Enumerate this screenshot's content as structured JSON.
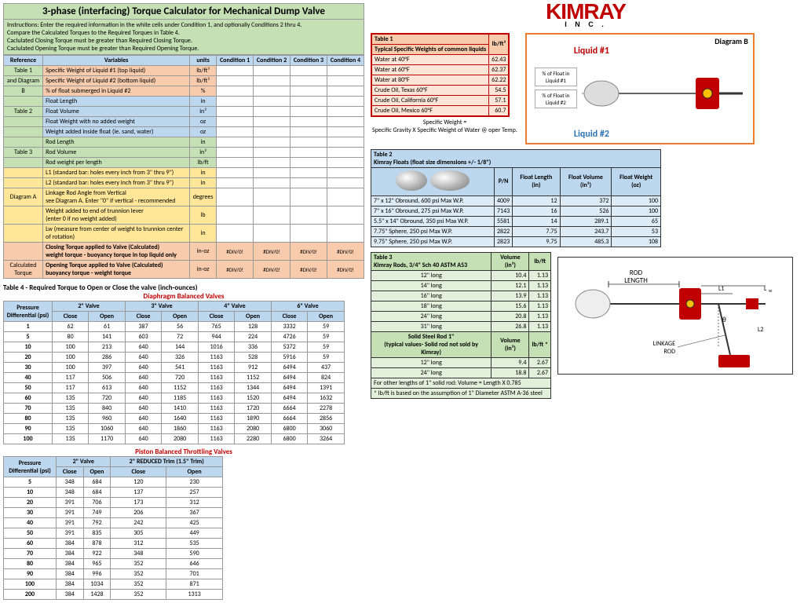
{
  "title": "3-phase (interfacing) Torque Calculator for Mechanical Dump Valve",
  "instructions": [
    "Instructions: Enter the required information in the white cells under Condition 1, and optionally Conditions 2 thru 4.",
    "Compare the Calculated Torques to the Required Torques in Table 4.",
    "Caclulated Closing Torque must be greater than Required Closing Torque.",
    "Caclulated Opening Torque must be greater than Required Opening Torque."
  ],
  "main_table": {
    "headers": [
      "Reference",
      "Variables",
      "units",
      "Condition 1",
      "Condition 2",
      "Condition 3",
      "Condition 4"
    ],
    "rows": [
      {
        "ref": "Table 1",
        "refclass": "ref-green",
        "var": "Specific Weight of Liquid #1 (top liquid)",
        "varclass": "ref-orange",
        "unit": "lb/ft³",
        "unitclass": "ref-orange"
      },
      {
        "ref": "and Diagram",
        "refclass": "ref-green",
        "var": "Specific Weight of Liquid #2 (bottom liquid)",
        "varclass": "ref-orange",
        "unit": "lb/ft³",
        "unitclass": "ref-orange"
      },
      {
        "ref": "B",
        "refclass": "ref-green",
        "var": "% of float submerged in Liquid #2",
        "varclass": "ref-orange",
        "unit": "%",
        "unitclass": "ref-orange"
      },
      {
        "ref": "",
        "refclass": "ref-green",
        "var": "Float Length",
        "varclass": "ref-blue",
        "unit": "in",
        "unitclass": "ref-blue"
      },
      {
        "ref": "Table 2",
        "refclass": "ref-green",
        "var": "Float Volume",
        "varclass": "ref-blue",
        "unit": "in³",
        "unitclass": "ref-blue"
      },
      {
        "ref": "",
        "refclass": "ref-green",
        "var": "Float Weight with no added weight",
        "varclass": "ref-blue",
        "unit": "oz",
        "unitclass": "ref-blue"
      },
      {
        "ref": "",
        "refclass": "ref-green",
        "var": "Weight added inside float (ie. sand, water)",
        "varclass": "ref-blue",
        "unit": "oz",
        "unitclass": "ref-blue"
      },
      {
        "ref": "",
        "refclass": "ref-green",
        "var": "Rod Length",
        "varclass": "ref-green",
        "unit": "in",
        "unitclass": "ref-green"
      },
      {
        "ref": "Table 3",
        "refclass": "ref-green",
        "var": "Rod Volume",
        "varclass": "ref-green",
        "unit": "in³",
        "unitclass": "ref-green"
      },
      {
        "ref": "",
        "refclass": "ref-green",
        "var": "Rod weight per length",
        "varclass": "ref-green",
        "unit": "lb/ft",
        "unitclass": "ref-green"
      },
      {
        "ref": "",
        "refclass": "ref-yellow",
        "var": "L1  (standard bar: holes every inch from 3\" thru 9\")",
        "varclass": "ref-yellow",
        "unit": "in",
        "unitclass": "ref-yellow"
      },
      {
        "ref": "",
        "refclass": "ref-yellow",
        "var": "L2  (standard bar: holes every inch from 3\" thru 9\")",
        "varclass": "ref-yellow",
        "unit": "in",
        "unitclass": "ref-yellow"
      },
      {
        "ref": "Diagram A",
        "refclass": "ref-yellow",
        "var": "Linkage Rod Angle from Vertical\nsee Diagram A.  Enter \"0\" if vertical - recommended",
        "varclass": "ref-yellow",
        "unit": "degrees",
        "unitclass": "ref-yellow"
      },
      {
        "ref": "",
        "refclass": "ref-yellow",
        "var": "Weight added to end of trunnion lever\n(enter 0 if no weight added)",
        "varclass": "ref-yellow",
        "unit": "lb",
        "unitclass": "ref-yellow"
      },
      {
        "ref": "",
        "refclass": "ref-yellow",
        "var": "Lw  (measure from center of weight to trunnion center of rotation)",
        "varclass": "ref-yellow",
        "unit": "in",
        "unitclass": "ref-yellow"
      }
    ],
    "calc_rows": [
      {
        "ref": "",
        "var": "Closing Torque applied to Valve (Calculated)\nweight torque - buoyancy torque in top liquid only",
        "unit": "in-oz"
      },
      {
        "ref": "Calculated\nTorque",
        "var": "Opening Torque applied to Valve (Calculated)\nbuoyancy torque - weight torque",
        "unit": "in-oz"
      }
    ],
    "div0": "#DIV/0!"
  },
  "table4_title": "Table 4  -  Required Torque to Open or Close the valve (inch-ounces)",
  "diaphragm_title": "Diaphragm Balanced Valves",
  "piston_title": "Piston Balanced Throttling Valves",
  "table4": {
    "header1": [
      "Pressure Differential (psi)",
      "2\" Valve",
      "3\" Valve",
      "4\" Valve",
      "6\" Valve"
    ],
    "header2": [
      "Close",
      "Open",
      "Close",
      "Open",
      "Close",
      "Open",
      "Close",
      "Open"
    ],
    "rows": [
      [
        "1",
        "62",
        "61",
        "387",
        "56",
        "765",
        "128",
        "3332",
        "59"
      ],
      [
        "5",
        "80",
        "141",
        "603",
        "72",
        "944",
        "224",
        "4726",
        "59"
      ],
      [
        "10",
        "100",
        "213",
        "640",
        "144",
        "1016",
        "336",
        "5372",
        "59"
      ],
      [
        "20",
        "100",
        "286",
        "640",
        "326",
        "1163",
        "528",
        "5916",
        "59"
      ],
      [
        "30",
        "100",
        "397",
        "640",
        "541",
        "1163",
        "912",
        "6494",
        "437"
      ],
      [
        "40",
        "117",
        "506",
        "640",
        "720",
        "1163",
        "1152",
        "6494",
        "824"
      ],
      [
        "50",
        "117",
        "613",
        "640",
        "1152",
        "1163",
        "1344",
        "6494",
        "1391"
      ],
      [
        "60",
        "135",
        "720",
        "640",
        "1185",
        "1163",
        "1520",
        "6494",
        "1632"
      ],
      [
        "70",
        "135",
        "840",
        "640",
        "1410",
        "1163",
        "1720",
        "6664",
        "2278"
      ],
      [
        "80",
        "135",
        "960",
        "640",
        "1640",
        "1163",
        "1890",
        "6664",
        "2856"
      ],
      [
        "90",
        "135",
        "1060",
        "640",
        "1860",
        "1163",
        "2080",
        "6800",
        "3060"
      ],
      [
        "100",
        "135",
        "1170",
        "640",
        "2080",
        "1163",
        "2280",
        "6800",
        "3264"
      ]
    ]
  },
  "throttle": {
    "header1": [
      "Pressure Differential (psi)",
      "2\" Valve",
      "2\" REDUCED Trim (1.5\" Trim)"
    ],
    "header2": [
      "Close",
      "Open",
      "Close",
      "Open"
    ],
    "rows": [
      [
        "5",
        "348",
        "684",
        "120",
        "230"
      ],
      [
        "10",
        "348",
        "684",
        "137",
        "257"
      ],
      [
        "20",
        "391",
        "706",
        "173",
        "312"
      ],
      [
        "30",
        "391",
        "749",
        "206",
        "367"
      ],
      [
        "40",
        "391",
        "792",
        "242",
        "425"
      ],
      [
        "50",
        "391",
        "835",
        "305",
        "449"
      ],
      [
        "60",
        "384",
        "878",
        "312",
        "535"
      ],
      [
        "70",
        "384",
        "922",
        "348",
        "590"
      ],
      [
        "80",
        "384",
        "965",
        "352",
        "646"
      ],
      [
        "90",
        "384",
        "996",
        "352",
        "701"
      ],
      [
        "100",
        "384",
        "1034",
        "352",
        "871"
      ],
      [
        "200",
        "384",
        "1428",
        "352",
        "1313"
      ]
    ]
  },
  "logo": {
    "name": "KIMRAY",
    "sub": "I N C ."
  },
  "table1": {
    "title": "Table 1",
    "subtitle": "  Typical Specific Weights of common liquids",
    "unit": "lb/ft³",
    "rows": [
      [
        "Water at 40°F",
        "62.43"
      ],
      [
        "Water at 60°F",
        "62.37"
      ],
      [
        "Water at 80°F",
        "62.22"
      ],
      [
        "Crude Oil, Texas 60°F",
        "54.5"
      ],
      [
        "Crude Oil, California 60°F",
        "57.1"
      ],
      [
        "Crude Oil, Mexico 60°F",
        "60.7"
      ]
    ],
    "formula": "Specific Weight =\nSpecific Gravity  X  Specific Weight of Water @ oper Temp."
  },
  "diagramB": {
    "title": "Diagram B",
    "liquid1": "Liquid #1",
    "liquid2": "Liquid #2",
    "pct1": "% of Float in Liquid #1",
    "pct2": "% of Float in Liquid #2"
  },
  "table2": {
    "title": "Table 2",
    "subtitle": "Kimray Floats   (float size dimensions +/- 1/8\")",
    "headers": [
      "P/N",
      "Float Length (in)",
      "Float Volume (in³)",
      "Float Weight (oz)"
    ],
    "rows": [
      [
        "7\" x 12\" Obround,  600 psi Max W.P.",
        "4009",
        "12",
        "372",
        "100"
      ],
      [
        "7\" x 16\" Obround,  275 psi Max W.P.",
        "7143",
        "16",
        "526",
        "100"
      ],
      [
        "5.5\" x 14\" Obround, 350 psi Max W.P.",
        "5581",
        "14",
        "289.1",
        "65"
      ],
      [
        "7.75\" Sphere,  250 psi Max W.P.",
        "2822",
        "7.75",
        "243.7",
        "53"
      ],
      [
        "9.75\" Sphere,  250 psi Max W.P.",
        "2823",
        "9.75",
        "485.3",
        "108"
      ]
    ]
  },
  "table3": {
    "title": "Table 3",
    "subtitle": "Kimray Rods,  3/4\" Sch 40 ASTM A53",
    "headers": [
      "Volume (in³)",
      "lb/ft"
    ],
    "rows": [
      [
        "12\" long",
        "10.4",
        "1.13"
      ],
      [
        "14\" long",
        "12.1",
        "1.13"
      ],
      [
        "16\" long",
        "13.9",
        "1.13"
      ],
      [
        "18\" long",
        "15.6",
        "1.13"
      ],
      [
        "24\" long",
        "20.8",
        "1.13"
      ],
      [
        "31\" long",
        "26.8",
        "1.13"
      ]
    ],
    "steel_title": "Solid Steel Rod 1\"",
    "steel_sub": "(typical values- Solid rod not sold by Kimray)",
    "steel_headers": [
      "Volume (in³)",
      "lb/ft *"
    ],
    "steel_rows": [
      [
        "12\" long",
        "9.4",
        "2.67"
      ],
      [
        "24\" long",
        "18.8",
        "2.67"
      ]
    ],
    "footnote1": "For other lengths of 1\" solid rod:  Volume = Length X 0.785",
    "footnote2": "* lb/ft is based on the assumption of 1\" Diameter ASTM A-36 steel"
  },
  "diagramA": {
    "rod_length": "ROD LENGTH",
    "linkage_rod": "LINKAGE ROD",
    "L1": "L1",
    "L2": "L2",
    "Lw": "Lw",
    "theta": "θ"
  }
}
